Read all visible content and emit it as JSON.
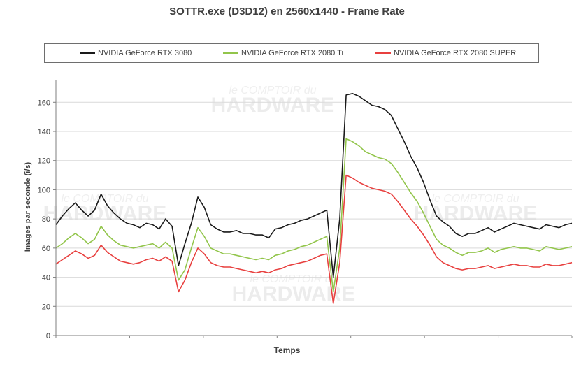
{
  "chart_data": {
    "type": "line",
    "title": "SOTTR.exe (D3D12) en 2560x1440 - Frame Rate",
    "xlabel": "Temps",
    "ylabel": "Images par seconde (i/s)",
    "ylim": [
      0,
      175
    ],
    "yticks": [
      "0",
      "20",
      "40",
      "60",
      "80",
      "100",
      "120",
      "140",
      "160"
    ],
    "grid": "horizontal",
    "legend_position": "top",
    "watermark": [
      "le COMPTOIR du",
      "HARDWARE"
    ],
    "series": [
      {
        "name": "NVIDIA GeForce RTX 3080",
        "color": "#1a1a1a",
        "points": [
          [
            0,
            76
          ],
          [
            1,
            82
          ],
          [
            2,
            87
          ],
          [
            3,
            91
          ],
          [
            4,
            86
          ],
          [
            5,
            82
          ],
          [
            6,
            86
          ],
          [
            7,
            97
          ],
          [
            8,
            89
          ],
          [
            9,
            84
          ],
          [
            10,
            80
          ],
          [
            11,
            77
          ],
          [
            12,
            76
          ],
          [
            13,
            74
          ],
          [
            14,
            77
          ],
          [
            15,
            76
          ],
          [
            16,
            73
          ],
          [
            17,
            80
          ],
          [
            18,
            75
          ],
          [
            19,
            48
          ],
          [
            20,
            63
          ],
          [
            21,
            77
          ],
          [
            22,
            95
          ],
          [
            23,
            88
          ],
          [
            24,
            76
          ],
          [
            25,
            73
          ],
          [
            26,
            71
          ],
          [
            27,
            71
          ],
          [
            28,
            72
          ],
          [
            29,
            70
          ],
          [
            30,
            70
          ],
          [
            31,
            69
          ],
          [
            32,
            69
          ],
          [
            33,
            67
          ],
          [
            34,
            73
          ],
          [
            35,
            74
          ],
          [
            36,
            76
          ],
          [
            37,
            77
          ],
          [
            38,
            79
          ],
          [
            39,
            80
          ],
          [
            40,
            82
          ],
          [
            41,
            84
          ],
          [
            42,
            86
          ],
          [
            43,
            40
          ],
          [
            44,
            80
          ],
          [
            45,
            165
          ],
          [
            46,
            166
          ],
          [
            47,
            164
          ],
          [
            48,
            161
          ],
          [
            49,
            158
          ],
          [
            50,
            157
          ],
          [
            51,
            155
          ],
          [
            52,
            151
          ],
          [
            53,
            142
          ],
          [
            54,
            133
          ],
          [
            55,
            123
          ],
          [
            56,
            115
          ],
          [
            57,
            105
          ],
          [
            58,
            93
          ],
          [
            59,
            82
          ],
          [
            60,
            78
          ],
          [
            61,
            75
          ],
          [
            62,
            70
          ],
          [
            63,
            68
          ],
          [
            64,
            70
          ],
          [
            65,
            70
          ],
          [
            66,
            72
          ],
          [
            67,
            74
          ],
          [
            68,
            71
          ],
          [
            69,
            73
          ],
          [
            70,
            75
          ],
          [
            71,
            77
          ],
          [
            72,
            76
          ],
          [
            73,
            75
          ],
          [
            74,
            74
          ],
          [
            75,
            73
          ],
          [
            76,
            76
          ],
          [
            77,
            75
          ],
          [
            78,
            74
          ],
          [
            79,
            76
          ],
          [
            80,
            77
          ]
        ]
      },
      {
        "name": "NVIDIA GeForce RTX 2080 Ti",
        "color": "#92c54b",
        "points": [
          [
            0,
            60
          ],
          [
            1,
            63
          ],
          [
            2,
            67
          ],
          [
            3,
            70
          ],
          [
            4,
            67
          ],
          [
            5,
            63
          ],
          [
            6,
            66
          ],
          [
            7,
            75
          ],
          [
            8,
            69
          ],
          [
            9,
            65
          ],
          [
            10,
            62
          ],
          [
            11,
            61
          ],
          [
            12,
            60
          ],
          [
            13,
            61
          ],
          [
            14,
            62
          ],
          [
            15,
            63
          ],
          [
            16,
            60
          ],
          [
            17,
            64
          ],
          [
            18,
            60
          ],
          [
            19,
            38
          ],
          [
            20,
            45
          ],
          [
            21,
            60
          ],
          [
            22,
            74
          ],
          [
            23,
            68
          ],
          [
            24,
            60
          ],
          [
            25,
            58
          ],
          [
            26,
            56
          ],
          [
            27,
            56
          ],
          [
            28,
            55
          ],
          [
            29,
            54
          ],
          [
            30,
            53
          ],
          [
            31,
            52
          ],
          [
            32,
            53
          ],
          [
            33,
            52
          ],
          [
            34,
            55
          ],
          [
            35,
            56
          ],
          [
            36,
            58
          ],
          [
            37,
            59
          ],
          [
            38,
            61
          ],
          [
            39,
            62
          ],
          [
            40,
            64
          ],
          [
            41,
            66
          ],
          [
            42,
            68
          ],
          [
            43,
            30
          ],
          [
            44,
            60
          ],
          [
            45,
            135
          ],
          [
            46,
            133
          ],
          [
            47,
            130
          ],
          [
            48,
            126
          ],
          [
            49,
            124
          ],
          [
            50,
            122
          ],
          [
            51,
            121
          ],
          [
            52,
            118
          ],
          [
            53,
            112
          ],
          [
            54,
            105
          ],
          [
            55,
            98
          ],
          [
            56,
            92
          ],
          [
            57,
            84
          ],
          [
            58,
            75
          ],
          [
            59,
            66
          ],
          [
            60,
            62
          ],
          [
            61,
            60
          ],
          [
            62,
            57
          ],
          [
            63,
            55
          ],
          [
            64,
            57
          ],
          [
            65,
            57
          ],
          [
            66,
            58
          ],
          [
            67,
            60
          ],
          [
            68,
            57
          ],
          [
            69,
            59
          ],
          [
            70,
            60
          ],
          [
            71,
            61
          ],
          [
            72,
            60
          ],
          [
            73,
            60
          ],
          [
            74,
            59
          ],
          [
            75,
            58
          ],
          [
            76,
            61
          ],
          [
            77,
            60
          ],
          [
            78,
            59
          ],
          [
            79,
            60
          ],
          [
            80,
            61
          ]
        ]
      },
      {
        "name": "NVIDIA GeForce RTX 2080 SUPER",
        "color": "#e8403f",
        "points": [
          [
            0,
            49
          ],
          [
            1,
            52
          ],
          [
            2,
            55
          ],
          [
            3,
            58
          ],
          [
            4,
            56
          ],
          [
            5,
            53
          ],
          [
            6,
            55
          ],
          [
            7,
            62
          ],
          [
            8,
            57
          ],
          [
            9,
            54
          ],
          [
            10,
            51
          ],
          [
            11,
            50
          ],
          [
            12,
            49
          ],
          [
            13,
            50
          ],
          [
            14,
            52
          ],
          [
            15,
            53
          ],
          [
            16,
            51
          ],
          [
            17,
            54
          ],
          [
            18,
            51
          ],
          [
            19,
            30
          ],
          [
            20,
            38
          ],
          [
            21,
            50
          ],
          [
            22,
            60
          ],
          [
            23,
            56
          ],
          [
            24,
            50
          ],
          [
            25,
            48
          ],
          [
            26,
            47
          ],
          [
            27,
            47
          ],
          [
            28,
            46
          ],
          [
            29,
            45
          ],
          [
            30,
            44
          ],
          [
            31,
            43
          ],
          [
            32,
            44
          ],
          [
            33,
            43
          ],
          [
            34,
            45
          ],
          [
            35,
            46
          ],
          [
            36,
            48
          ],
          [
            37,
            49
          ],
          [
            38,
            50
          ],
          [
            39,
            51
          ],
          [
            40,
            53
          ],
          [
            41,
            55
          ],
          [
            42,
            56
          ],
          [
            43,
            22
          ],
          [
            44,
            50
          ],
          [
            45,
            110
          ],
          [
            46,
            108
          ],
          [
            47,
            105
          ],
          [
            48,
            103
          ],
          [
            49,
            101
          ],
          [
            50,
            100
          ],
          [
            51,
            99
          ],
          [
            52,
            97
          ],
          [
            53,
            92
          ],
          [
            54,
            86
          ],
          [
            55,
            80
          ],
          [
            56,
            75
          ],
          [
            57,
            69
          ],
          [
            58,
            62
          ],
          [
            59,
            54
          ],
          [
            60,
            50
          ],
          [
            61,
            48
          ],
          [
            62,
            46
          ],
          [
            63,
            45
          ],
          [
            64,
            46
          ],
          [
            65,
            46
          ],
          [
            66,
            47
          ],
          [
            67,
            48
          ],
          [
            68,
            46
          ],
          [
            69,
            47
          ],
          [
            70,
            48
          ],
          [
            71,
            49
          ],
          [
            72,
            48
          ],
          [
            73,
            48
          ],
          [
            74,
            47
          ],
          [
            75,
            47
          ],
          [
            76,
            49
          ],
          [
            77,
            48
          ],
          [
            78,
            48
          ],
          [
            79,
            49
          ],
          [
            80,
            50
          ]
        ]
      }
    ]
  }
}
